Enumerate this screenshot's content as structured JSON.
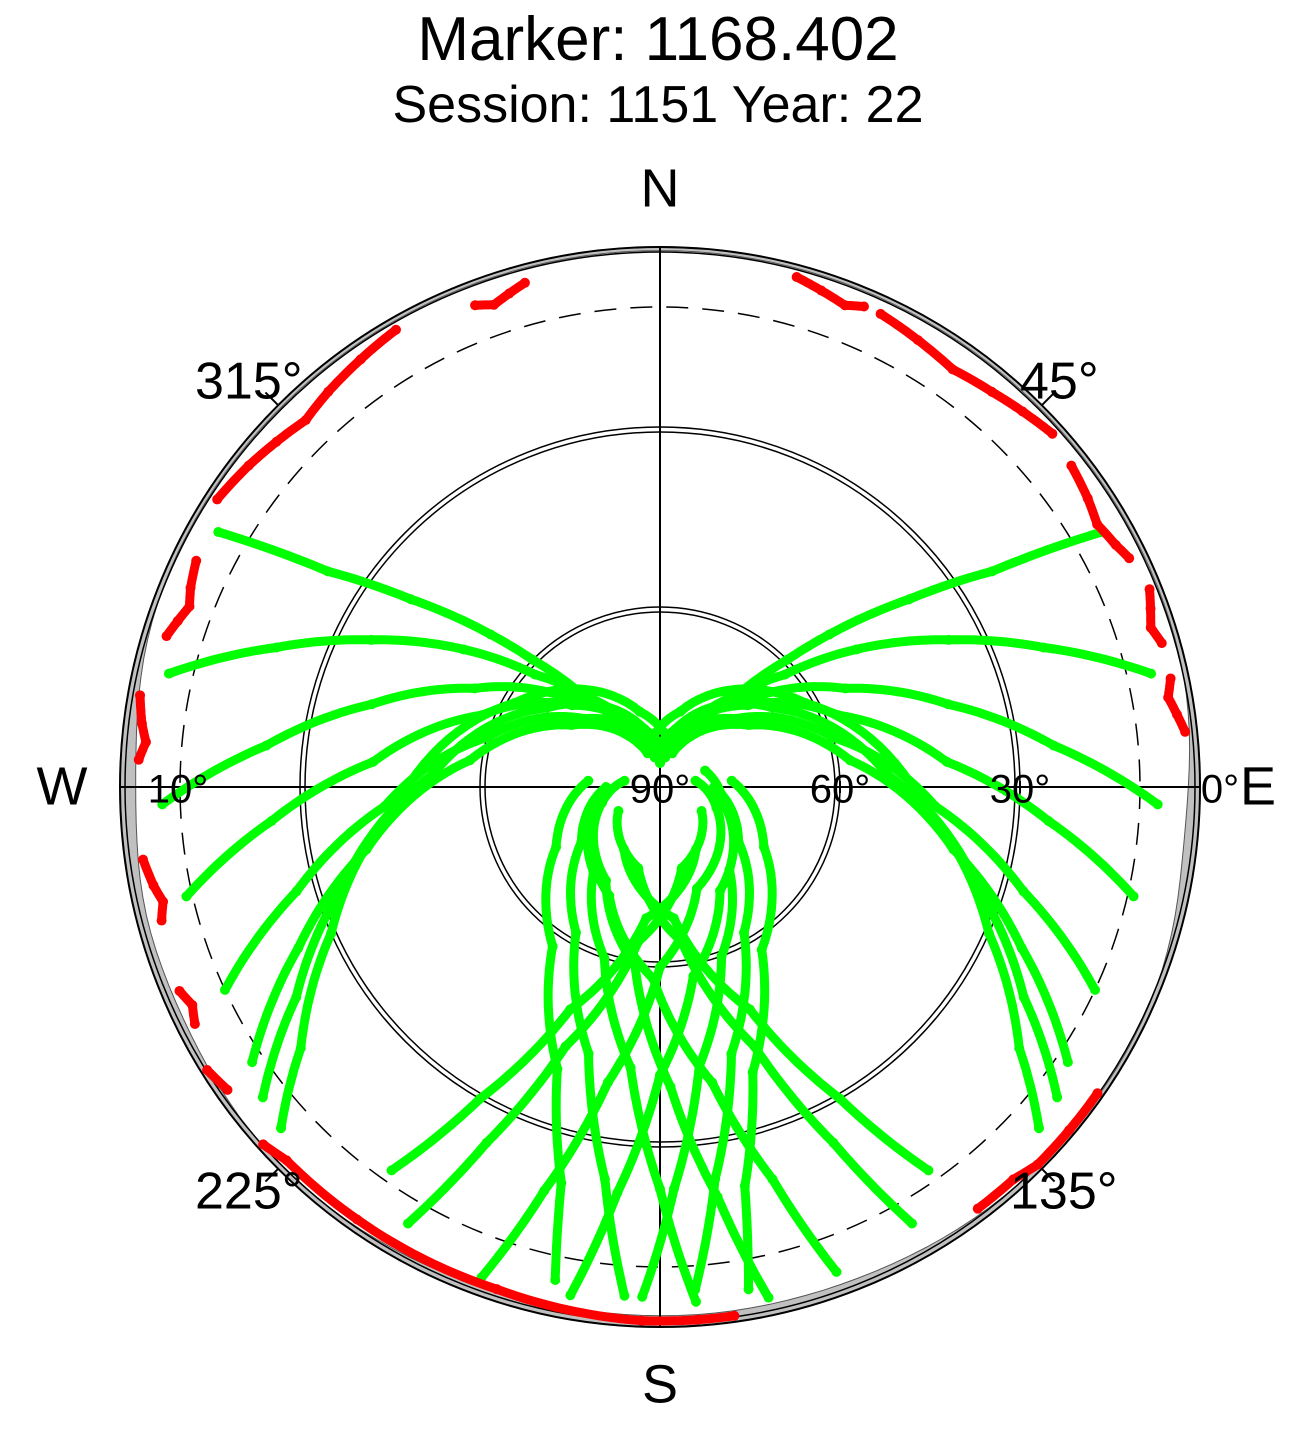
{
  "chart_data": {
    "type": "scatter",
    "projection": "polar-skyplot",
    "title": "Marker: 1168.402",
    "subtitle": "Session: 1151 Year: 22",
    "compass_labels": {
      "north": "N",
      "east": "E",
      "south": "S",
      "west": "W"
    },
    "azimuth_labels": [
      {
        "azimuth": 315,
        "text": "315°"
      },
      {
        "azimuth": 45,
        "text": "45°"
      },
      {
        "azimuth": 135,
        "text": "135°"
      },
      {
        "azimuth": 225,
        "text": "225°"
      }
    ],
    "elevation_labels": [
      {
        "elevation": 90,
        "text": "90°"
      },
      {
        "elevation": 60,
        "text": "60°"
      },
      {
        "elevation": 30,
        "text": "30°"
      },
      {
        "elevation": 0,
        "text": "0°"
      },
      {
        "elevation": 10,
        "text": "10°"
      }
    ],
    "elevation_rings_double": [
      60,
      30
    ],
    "elevation_ring_dashed": 10,
    "elevation_range": [
      0,
      90
    ],
    "horizon_mask_color": "#c0c0c0",
    "colors": {
      "observed": "#00ff00",
      "rejected": "#ff0000",
      "axis": "#000000"
    },
    "series": [
      {
        "color": "green",
        "points": [
          [
            300,
            5
          ],
          [
            303,
            24
          ],
          [
            307,
            38
          ],
          [
            312,
            52
          ],
          [
            315,
            60
          ],
          [
            320,
            70
          ],
          [
            340,
            82
          ]
        ]
      },
      {
        "color": "green",
        "points": [
          [
            283,
            6
          ],
          [
            290,
            22
          ],
          [
            297,
            36
          ],
          [
            305,
            50
          ],
          [
            312,
            62
          ],
          [
            325,
            75
          ],
          [
            350,
            83
          ]
        ]
      },
      {
        "color": "green",
        "points": [
          [
            268,
            7
          ],
          [
            276,
            24
          ],
          [
            286,
            40
          ],
          [
            298,
            55
          ],
          [
            312,
            67
          ],
          [
            333,
            77
          ],
          [
            357,
            85
          ]
        ]
      },
      {
        "color": "green",
        "points": [
          [
            257,
            9
          ],
          [
            265,
            25
          ],
          [
            275,
            42
          ],
          [
            292,
            58
          ],
          [
            313,
            70
          ],
          [
            340,
            80
          ],
          [
            360,
            86
          ]
        ]
      },
      {
        "color": "green",
        "points": [
          [
            245,
            10
          ],
          [
            254,
            27
          ],
          [
            266,
            44
          ],
          [
            286,
            60
          ],
          [
            312,
            73
          ],
          [
            345,
            82
          ]
        ]
      },
      {
        "color": "green",
        "points": [
          [
            236,
            8
          ],
          [
            246,
            24
          ],
          [
            258,
            40
          ],
          [
            278,
            58
          ],
          [
            305,
            72
          ],
          [
            340,
            84
          ]
        ]
      },
      {
        "color": "green",
        "points": [
          [
            232,
            6
          ],
          [
            240,
            20
          ],
          [
            252,
            34
          ],
          [
            273,
            52
          ],
          [
            305,
            67
          ],
          [
            345,
            80
          ],
          [
            10,
            85
          ]
        ]
      },
      {
        "color": "green",
        "points": [
          [
            228,
            5
          ],
          [
            234,
            16
          ],
          [
            246,
            30
          ],
          [
            266,
            46
          ],
          [
            300,
            62
          ],
          [
            345,
            77
          ],
          [
            20,
            84
          ]
        ]
      },
      {
        "color": "green",
        "points": [
          [
            60,
            5
          ],
          [
            57,
            24
          ],
          [
            53,
            38
          ],
          [
            48,
            52
          ],
          [
            45,
            60
          ],
          [
            40,
            70
          ],
          [
            20,
            82
          ]
        ]
      },
      {
        "color": "green",
        "points": [
          [
            77,
            6
          ],
          [
            70,
            22
          ],
          [
            63,
            36
          ],
          [
            55,
            50
          ],
          [
            48,
            62
          ],
          [
            35,
            75
          ],
          [
            10,
            83
          ]
        ]
      },
      {
        "color": "green",
        "points": [
          [
            92,
            7
          ],
          [
            84,
            24
          ],
          [
            74,
            40
          ],
          [
            62,
            55
          ],
          [
            48,
            67
          ],
          [
            27,
            77
          ],
          [
            3,
            85
          ]
        ]
      },
      {
        "color": "green",
        "points": [
          [
            103,
            9
          ],
          [
            95,
            25
          ],
          [
            85,
            42
          ],
          [
            68,
            58
          ],
          [
            47,
            70
          ],
          [
            20,
            80
          ],
          [
            0,
            86
          ]
        ]
      },
      {
        "color": "green",
        "points": [
          [
            115,
            10
          ],
          [
            106,
            27
          ],
          [
            94,
            44
          ],
          [
            74,
            60
          ],
          [
            48,
            73
          ],
          [
            15,
            82
          ]
        ]
      },
      {
        "color": "green",
        "points": [
          [
            124,
            8
          ],
          [
            114,
            24
          ],
          [
            102,
            40
          ],
          [
            82,
            58
          ],
          [
            55,
            72
          ],
          [
            20,
            84
          ]
        ]
      },
      {
        "color": "green",
        "points": [
          [
            128,
            6
          ],
          [
            120,
            20
          ],
          [
            108,
            34
          ],
          [
            87,
            52
          ],
          [
            55,
            67
          ],
          [
            15,
            80
          ],
          [
            350,
            85
          ]
        ]
      },
      {
        "color": "green",
        "points": [
          [
            132,
            5
          ],
          [
            126,
            16
          ],
          [
            114,
            30
          ],
          [
            94,
            46
          ],
          [
            60,
            62
          ],
          [
            15,
            77
          ],
          [
            340,
            84
          ]
        ]
      },
      {
        "color": "green",
        "points": [
          [
            200,
            3
          ],
          [
            196,
            20
          ],
          [
            190,
            40
          ],
          [
            180,
            60
          ],
          [
            160,
            72
          ],
          [
            110,
            80
          ],
          [
            80,
            84
          ]
        ]
      },
      {
        "color": "green",
        "points": [
          [
            190,
            4
          ],
          [
            186,
            22
          ],
          [
            180,
            42
          ],
          [
            170,
            58
          ],
          [
            150,
            70
          ],
          [
            105,
            79
          ],
          [
            70,
            82
          ]
        ]
      },
      {
        "color": "green",
        "points": [
          [
            182,
            5
          ],
          [
            178,
            23
          ],
          [
            172,
            43
          ],
          [
            160,
            60
          ],
          [
            140,
            72
          ],
          [
            100,
            80
          ]
        ]
      },
      {
        "color": "green",
        "points": [
          [
            176,
            6
          ],
          [
            172,
            24
          ],
          [
            165,
            44
          ],
          [
            150,
            62
          ],
          [
            125,
            74
          ],
          [
            90,
            81
          ]
        ]
      },
      {
        "color": "green",
        "points": [
          [
            170,
            5
          ],
          [
            168,
            22
          ],
          [
            162,
            40
          ],
          [
            148,
            58
          ],
          [
            120,
            70
          ],
          [
            85,
            78
          ]
        ]
      },
      {
        "color": "green",
        "points": [
          [
            160,
            4
          ],
          [
            164,
            22
          ],
          [
            170,
            40
          ],
          [
            182,
            58
          ],
          [
            205,
            70
          ],
          [
            255,
            80
          ],
          [
            280,
            84
          ]
        ]
      },
      {
        "color": "green",
        "points": [
          [
            168,
            3
          ],
          [
            172,
            21
          ],
          [
            178,
            40
          ],
          [
            188,
            60
          ],
          [
            210,
            72
          ],
          [
            255,
            80
          ]
        ]
      },
      {
        "color": "green",
        "points": [
          [
            176,
            4
          ],
          [
            180,
            23
          ],
          [
            186,
            43
          ],
          [
            198,
            60
          ],
          [
            218,
            72
          ],
          [
            260,
            80
          ]
        ]
      },
      {
        "color": "green",
        "points": [
          [
            184,
            5
          ],
          [
            188,
            24
          ],
          [
            195,
            44
          ],
          [
            210,
            62
          ],
          [
            235,
            74
          ],
          [
            270,
            81
          ]
        ]
      },
      {
        "color": "green",
        "points": [
          [
            192,
            6
          ],
          [
            194,
            22
          ],
          [
            200,
            40
          ],
          [
            214,
            58
          ],
          [
            240,
            70
          ],
          [
            275,
            78
          ]
        ]
      },
      {
        "color": "green",
        "points": [
          [
            150,
            6
          ],
          [
            154,
            24
          ],
          [
            160,
            44
          ],
          [
            172,
            64
          ],
          [
            195,
            76
          ],
          [
            240,
            82
          ]
        ]
      },
      {
        "color": "green",
        "points": [
          [
            210,
            6
          ],
          [
            206,
            24
          ],
          [
            200,
            44
          ],
          [
            188,
            64
          ],
          [
            165,
            76
          ],
          [
            120,
            82
          ]
        ]
      },
      {
        "color": "green",
        "points": [
          [
            145,
            12
          ],
          [
            150,
            30
          ],
          [
            158,
            50
          ],
          [
            174,
            68
          ],
          [
            210,
            78
          ]
        ]
      },
      {
        "color": "green",
        "points": [
          [
            215,
            12
          ],
          [
            210,
            30
          ],
          [
            202,
            50
          ],
          [
            186,
            68
          ],
          [
            150,
            78
          ]
        ]
      },
      {
        "color": "red",
        "points": [
          [
            330,
            2
          ],
          [
            325,
            3
          ],
          [
            320,
            4
          ],
          [
            316,
            5
          ],
          [
            312,
            4
          ],
          [
            308,
            3
          ],
          [
            303,
            2
          ]
        ]
      },
      {
        "color": "red",
        "points": [
          [
            296,
            4
          ],
          [
            293,
            5
          ],
          [
            291,
            6
          ],
          [
            289,
            5
          ],
          [
            287,
            4
          ]
        ]
      },
      {
        "color": "red",
        "points": [
          [
            280,
            2
          ],
          [
            277,
            3
          ],
          [
            275,
            4
          ],
          [
            273,
            3
          ]
        ]
      },
      {
        "color": "red",
        "points": [
          [
            345,
            3
          ],
          [
            343,
            4
          ],
          [
            341,
            5
          ],
          [
            339,
            4
          ]
        ]
      },
      {
        "color": "red",
        "points": [
          [
            262,
            3
          ],
          [
            259,
            4
          ],
          [
            257,
            5
          ],
          [
            255,
            4
          ]
        ]
      },
      {
        "color": "red",
        "points": [
          [
            247,
            3
          ],
          [
            245,
            4
          ],
          [
            243,
            3
          ]
        ]
      },
      {
        "color": "red",
        "points": [
          [
            25,
            3
          ],
          [
            30,
            4
          ],
          [
            35,
            5
          ],
          [
            40,
            4
          ],
          [
            44,
            3
          ],
          [
            48,
            2
          ]
        ]
      },
      {
        "color": "red",
        "points": [
          [
            52,
            3
          ],
          [
            56,
            4
          ],
          [
            59,
            5
          ],
          [
            62,
            4
          ],
          [
            64,
            3
          ]
        ]
      },
      {
        "color": "red",
        "points": [
          [
            68,
            2
          ],
          [
            70,
            3
          ],
          [
            72,
            4
          ],
          [
            74,
            3
          ]
        ]
      },
      {
        "color": "red",
        "points": [
          [
            78,
            3
          ],
          [
            80,
            4
          ],
          [
            82,
            3
          ],
          [
            84,
            2
          ]
        ]
      },
      {
        "color": "red",
        "points": [
          [
            15,
            2
          ],
          [
            18,
            3
          ],
          [
            21,
            4
          ],
          [
            23,
            3
          ]
        ]
      },
      {
        "color": "red",
        "points": [
          [
            125,
            1
          ],
          [
            130,
            1
          ],
          [
            135,
            1
          ],
          [
            138,
            2
          ],
          [
            143,
            2
          ]
        ]
      },
      {
        "color": "red",
        "points": [
          [
            172,
            1
          ],
          [
            176,
            1
          ],
          [
            182,
            1
          ],
          [
            198,
            2
          ],
          [
            215,
            2
          ],
          [
            225,
            2
          ],
          [
            228,
            1
          ]
        ]
      },
      {
        "color": "red",
        "points": [
          [
            235,
            2
          ],
          [
            238,
            1
          ]
        ]
      }
    ]
  }
}
